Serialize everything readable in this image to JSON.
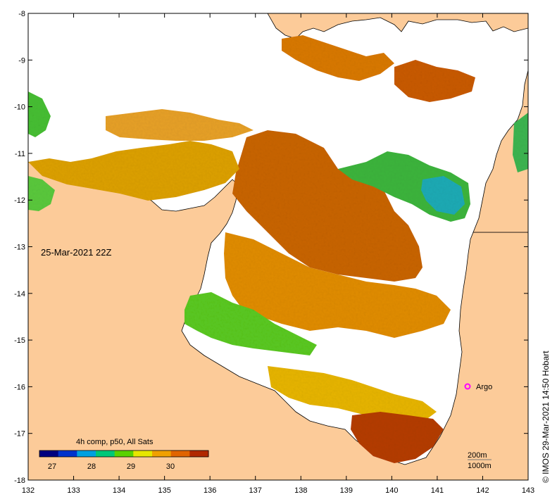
{
  "map": {
    "timestamp_label": "25-Mar-2021 22Z",
    "lon_range": [
      132,
      143
    ],
    "lat_range": [
      -18,
      -8
    ],
    "lon_ticks": [
      "132",
      "133",
      "134",
      "135",
      "136",
      "137",
      "138",
      "139",
      "140",
      "141",
      "142",
      "143"
    ],
    "lat_ticks": [
      "-8",
      "-9",
      "-10",
      "-11",
      "-12",
      "-13",
      "-14",
      "-15",
      "-16",
      "-17",
      "-18"
    ],
    "land_color": "#fccb99",
    "nodata_color": "#ffffff"
  },
  "colorbar": {
    "title": "4h comp, p50, All Sats",
    "ticks": [
      "27",
      "28",
      "29",
      "30"
    ],
    "colors": [
      "#00007f",
      "#0033cc",
      "#00a0e0",
      "#00c878",
      "#5ad200",
      "#e6e600",
      "#f0a000",
      "#e06400",
      "#b02800"
    ]
  },
  "argo": {
    "label": "Argo",
    "marker_color": "#ff00ff"
  },
  "depth_legend": {
    "contour_200": "200m",
    "contour_1000": "1000m"
  },
  "credit": "© IMOS 29-Mar-2021 14:50 Hobart"
}
